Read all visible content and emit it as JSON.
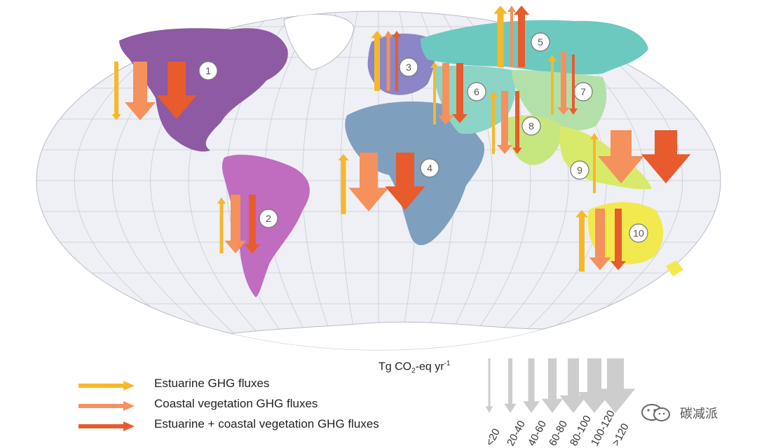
{
  "regions": [
    {
      "id": "1",
      "color": "#8e5aa3"
    },
    {
      "id": "2",
      "color": "#c06cbf"
    },
    {
      "id": "3",
      "color": "#8a86c8"
    },
    {
      "id": "4",
      "color": "#7f9fbf"
    },
    {
      "id": "5",
      "color": "#6cc9c0"
    },
    {
      "id": "6",
      "color": "#8bd4c6"
    },
    {
      "id": "7",
      "color": "#b3e0a8"
    },
    {
      "id": "8",
      "color": "#c6e67f"
    },
    {
      "id": "9",
      "color": "#d9ea6b"
    },
    {
      "id": "10",
      "color": "#f2e94e"
    }
  ],
  "legend": {
    "items": [
      {
        "label": "Estuarine GHG fluxes",
        "color": "#f6b82b"
      },
      {
        "label": "Coastal vegetation GHG fluxes",
        "color": "#f4915c"
      },
      {
        "label": "Estuarine + coastal vegetation GHG fluxes",
        "color": "#e85b2c"
      }
    ]
  },
  "scale": {
    "unit_prefix": "Tg CO",
    "unit_sub": "2",
    "unit_mid": "-eq yr",
    "unit_sup": "-1",
    "ticks": [
      "<20",
      "20-40",
      "40-60",
      "60-80",
      "80-100",
      "100-120",
      ">120"
    ]
  },
  "watermark": {
    "text": "碳减派"
  }
}
